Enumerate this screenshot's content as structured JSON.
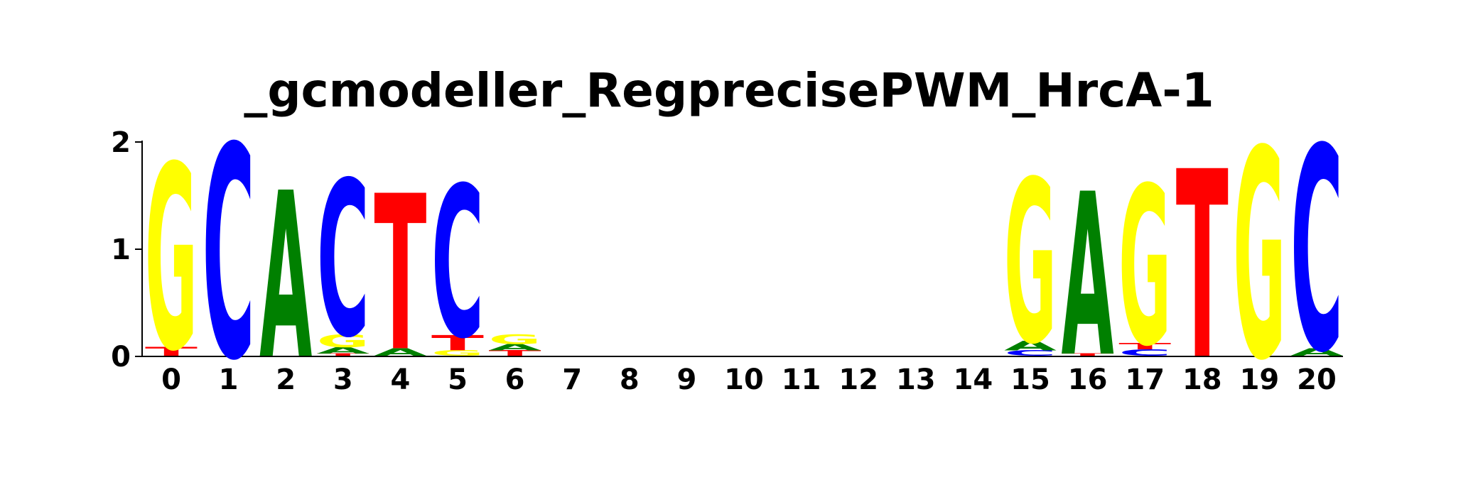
{
  "chart_data": {
    "type": "sequence-logo",
    "title": "_gcmodeller_RegprecisePWM_HrcA-1",
    "xlabel": "",
    "ylabel": "",
    "ylim": [
      0,
      2
    ],
    "y_ticks": [
      "0",
      "1",
      "2"
    ],
    "x": [
      "0",
      "1",
      "2",
      "3",
      "4",
      "5",
      "6",
      "7",
      "8",
      "9",
      "10",
      "11",
      "12",
      "13",
      "14",
      "15",
      "16",
      "17",
      "18",
      "19",
      "20"
    ],
    "colors": {
      "A": "#008000",
      "C": "#0000ff",
      "G": "#ffff00",
      "T": "#ff0000"
    },
    "positions": [
      {
        "pos": "0",
        "stack": [
          {
            "base": "T",
            "bits": 0.08
          },
          {
            "base": "G",
            "bits": 1.72
          }
        ]
      },
      {
        "pos": "1",
        "stack": [
          {
            "base": "C",
            "bits": 1.98
          }
        ]
      },
      {
        "pos": "2",
        "stack": [
          {
            "base": "A",
            "bits": 1.55
          }
        ]
      },
      {
        "pos": "3",
        "stack": [
          {
            "base": "T",
            "bits": 0.02
          },
          {
            "base": "A",
            "bits": 0.06
          },
          {
            "base": "G",
            "bits": 0.12
          },
          {
            "base": "C",
            "bits": 1.45
          }
        ]
      },
      {
        "pos": "4",
        "stack": [
          {
            "base": "A",
            "bits": 0.07
          },
          {
            "base": "T",
            "bits": 1.45
          }
        ]
      },
      {
        "pos": "5",
        "stack": [
          {
            "base": "G",
            "bits": 0.05
          },
          {
            "base": "T",
            "bits": 0.14
          },
          {
            "base": "C",
            "bits": 1.41
          }
        ]
      },
      {
        "pos": "6",
        "stack": [
          {
            "base": "T",
            "bits": 0.05
          },
          {
            "base": "A",
            "bits": 0.06
          },
          {
            "base": "G",
            "bits": 0.09
          }
        ]
      },
      {
        "pos": "7",
        "stack": []
      },
      {
        "pos": "8",
        "stack": []
      },
      {
        "pos": "9",
        "stack": []
      },
      {
        "pos": "10",
        "stack": []
      },
      {
        "pos": "11",
        "stack": []
      },
      {
        "pos": "12",
        "stack": []
      },
      {
        "pos": "13",
        "stack": []
      },
      {
        "pos": "14",
        "stack": []
      },
      {
        "pos": "15",
        "stack": [
          {
            "base": "C",
            "bits": 0.05
          },
          {
            "base": "A",
            "bits": 0.09
          },
          {
            "base": "G",
            "bits": 1.52
          }
        ]
      },
      {
        "pos": "16",
        "stack": [
          {
            "base": "T",
            "bits": 0.02
          },
          {
            "base": "A",
            "bits": 1.52
          }
        ]
      },
      {
        "pos": "17",
        "stack": [
          {
            "base": "C",
            "bits": 0.06
          },
          {
            "base": "T",
            "bits": 0.06
          },
          {
            "base": "G",
            "bits": 1.48
          }
        ]
      },
      {
        "pos": "18",
        "stack": [
          {
            "base": "T",
            "bits": 1.75
          }
        ]
      },
      {
        "pos": "19",
        "stack": [
          {
            "base": "G",
            "bits": 1.95
          }
        ]
      },
      {
        "pos": "20",
        "stack": [
          {
            "base": "A",
            "bits": 0.07
          },
          {
            "base": "C",
            "bits": 1.9
          }
        ]
      }
    ]
  }
}
